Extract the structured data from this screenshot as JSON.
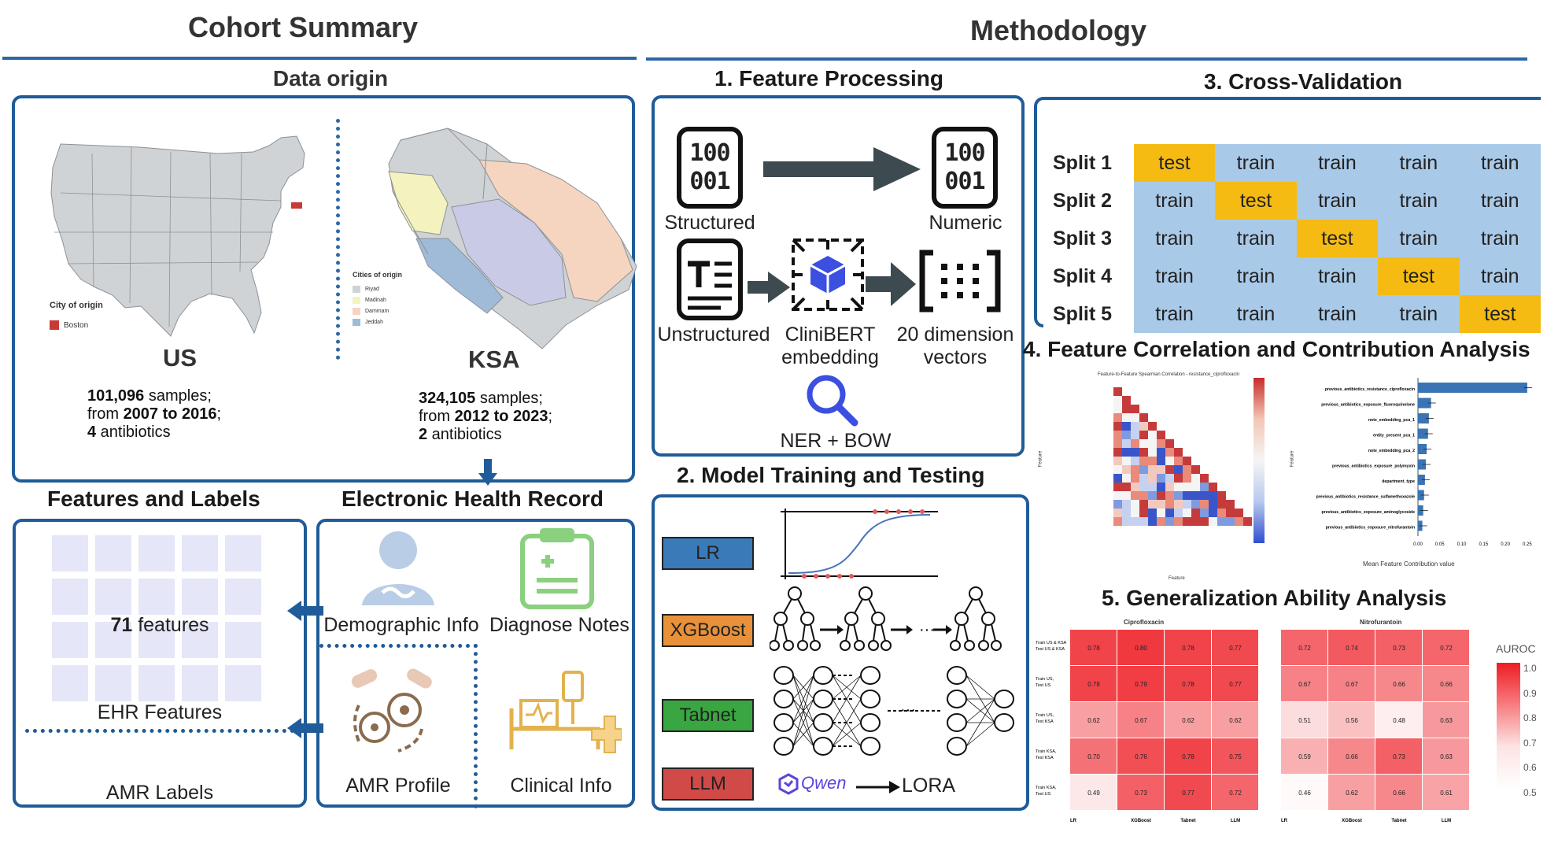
{
  "left": {
    "title": "Cohort Summary",
    "data_origin": "Data origin",
    "us": {
      "caption": "US",
      "legend_title": "City of origin",
      "legend_item": "Boston",
      "samples": "101,096",
      "samples_suffix": " samples;",
      "from": "from ",
      "years": "2007 to 2016",
      "years_suffix": ";",
      "abx_n": "4",
      "abx": " antibiotics"
    },
    "ksa": {
      "caption": "KSA",
      "legend_title": "Cities of origin",
      "legend_items": [
        "Riyad",
        "Madinah",
        "Dammam",
        "Jeddah"
      ],
      "samples": "324,105",
      "samples_suffix": " samples;",
      "from": "from ",
      "years": "2012 to 2023",
      "years_suffix": ";",
      "abx_n": "2",
      "abx": " antibiotics"
    },
    "features_labels": "Features and Labels",
    "ehr_title": "Electronic Health Record",
    "features_n": "71",
    "features_txt": " features",
    "ehr_features": "EHR Features",
    "amr_labels": "AMR Labels",
    "demographic": "Demographic Info",
    "diagnose": "Diagnose Notes",
    "amr_profile": "AMR Profile",
    "clinical": "Clinical Info"
  },
  "right": {
    "title": "Methodology",
    "fp": {
      "title": "1. Feature Processing",
      "structured": "Structured",
      "numeric": "Numeric",
      "unstructured": "Unstructured",
      "clinibert1": "CliniBERT",
      "clinibert2": "embedding",
      "dim1": "20 dimension",
      "dim2": "vectors",
      "ner": "NER + BOW",
      "digits1": "100",
      "digits2": "001"
    },
    "mt": {
      "title": "2. Model Training and Testing",
      "models": [
        "LR",
        "XGBoost",
        "Tabnet",
        "LLM"
      ],
      "model_colors": [
        "#3b7ab8",
        "#e8913a",
        "#3aa641",
        "#d04a48"
      ],
      "qwen": "Qwen",
      "lora": "LORA"
    },
    "cv": {
      "title": "3. Cross-Validation",
      "rows": [
        {
          "label": "Split 1",
          "cells": [
            "test",
            "train",
            "train",
            "train",
            "train"
          ]
        },
        {
          "label": "Split 2",
          "cells": [
            "train",
            "test",
            "train",
            "train",
            "train"
          ]
        },
        {
          "label": "Split 3",
          "cells": [
            "train",
            "train",
            "test",
            "train",
            "train"
          ]
        },
        {
          "label": "Split 4",
          "cells": [
            "train",
            "train",
            "train",
            "test",
            "train"
          ]
        },
        {
          "label": "Split 5",
          "cells": [
            "train",
            "train",
            "train",
            "train",
            "test"
          ]
        }
      ]
    },
    "fc": {
      "title": "4. Feature Correlation and Contribution Analysis",
      "heat_title": "Feature-to-Feature Spearman Correlation - resistance_ciprofloxacin",
      "xlabel": "Feature",
      "ylabel": "Feature",
      "bar_xlabel": "Mean Feature Contribution value",
      "bar_features": [
        "previous_antibiotics_resistance_ciprofloxacin",
        "previous_antibiotics_exposure_fluoroquinolone",
        "note_embedding_pca_1",
        "entity_present_pca_1",
        "note_embedding_pca_2",
        "previous_antibiotics_exposure_polymyxin",
        "department_type",
        "previous_antibiotics_resistance_sulfamethoxazole",
        "previous_antibiotics_exposure_aminoglycoside",
        "previous_antibiotics_exposure_nitrofurantoin"
      ],
      "bar_values": [
        0.25,
        0.03,
        0.025,
        0.023,
        0.02,
        0.018,
        0.016,
        0.014,
        0.012,
        0.01
      ],
      "bar_ticks": [
        "0.00",
        "0.05",
        "0.10",
        "0.15",
        "0.20",
        "0.25"
      ]
    },
    "ga": {
      "title": "5. Generalization Ability Analysis",
      "cipro_title": "Ciprofloxacin",
      "nitro_title": "Nitrofurantoin",
      "row_labels": [
        "Train US & KSA Test US & KSA",
        "Train US, Test US",
        "Train US, Test KSA",
        "Train KSA, Test KSA",
        "Train KSA, Test US"
      ],
      "col_labels": [
        "LR",
        "XGBoost",
        "Tabnet",
        "LLM"
      ],
      "cipro": [
        [
          0.78,
          0.8,
          0.78,
          0.77
        ],
        [
          0.78,
          0.79,
          0.78,
          0.77
        ],
        [
          0.62,
          0.67,
          0.62,
          0.62
        ],
        [
          0.7,
          0.76,
          0.78,
          0.75
        ],
        [
          0.49,
          0.73,
          0.77,
          0.72
        ]
      ],
      "nitro": [
        [
          0.72,
          0.74,
          0.73,
          0.72
        ],
        [
          0.67,
          0.67,
          0.66,
          0.66
        ],
        [
          0.51,
          0.56,
          0.48,
          0.63
        ],
        [
          0.59,
          0.66,
          0.73,
          0.63
        ],
        [
          0.46,
          0.62,
          0.66,
          0.61
        ]
      ],
      "colorbar_title": "AUROC",
      "colorbar_ticks": [
        "1.0",
        "0.9",
        "0.8",
        "0.7",
        "0.6",
        "0.5"
      ]
    }
  }
}
